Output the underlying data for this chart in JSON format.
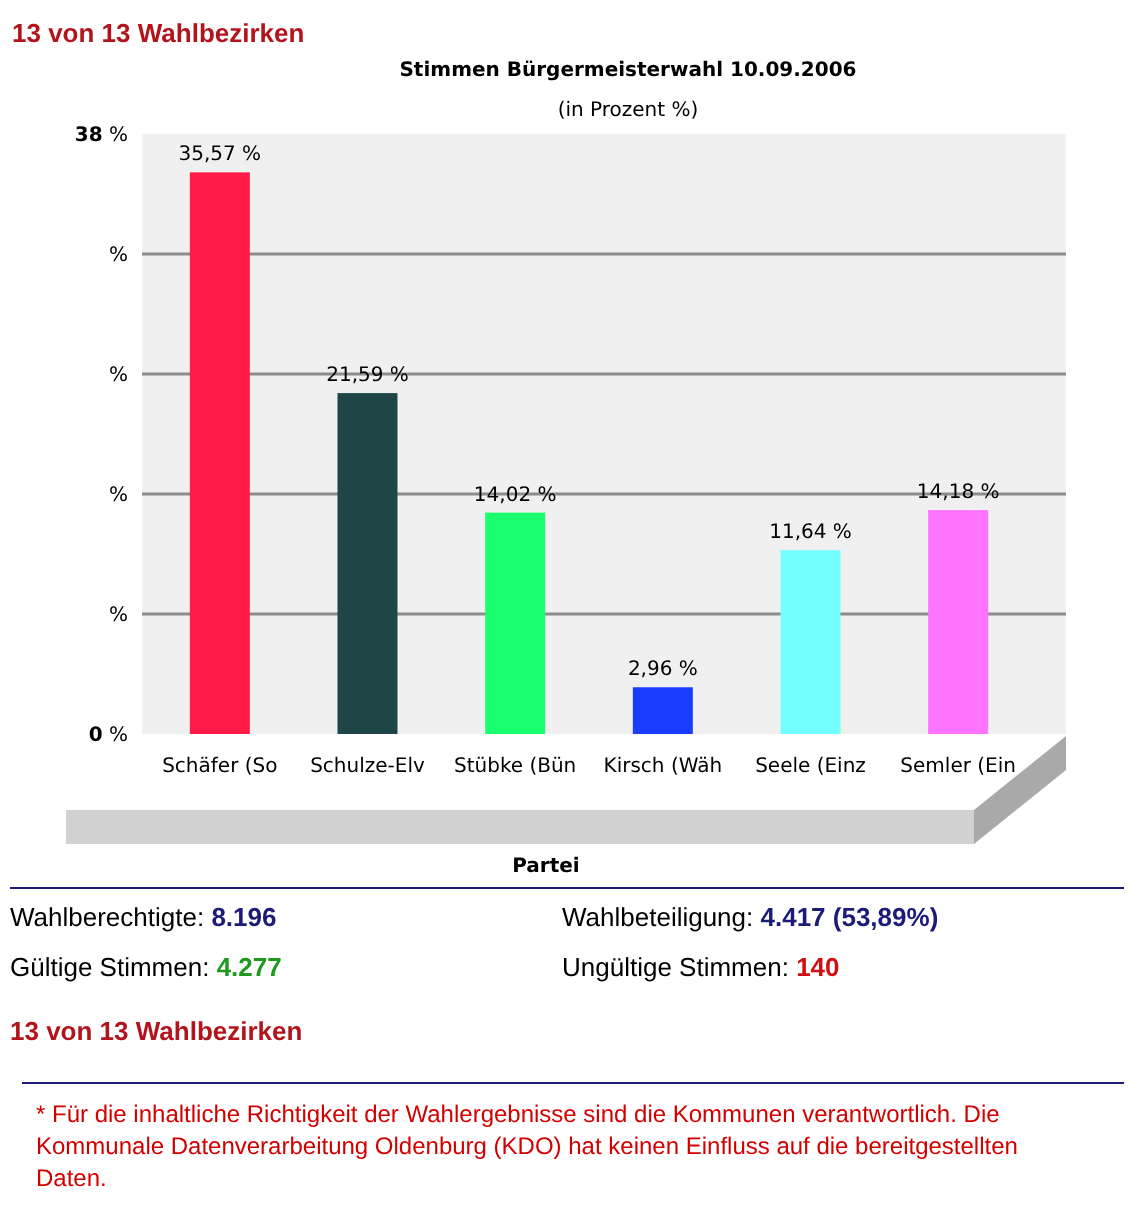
{
  "chart_data": {
    "type": "bar",
    "title": "Stimmen Bürgermeisterwahl 10.09.2006",
    "subtitle": "(in Prozent %)",
    "xlabel": "Partei",
    "categories": [
      "Schäfer (So",
      "Schulze-Elv",
      "Stübke (Bün",
      "Kirsch (Wäh",
      "Seele (Einz",
      "Semler (Ein"
    ],
    "values": [
      35.57,
      21.59,
      14.02,
      2.96,
      11.64,
      14.18
    ],
    "colors": [
      "#ff1a48",
      "#1e4646",
      "#19ff6e",
      "#1a3cff",
      "#73ffff",
      "#ff73ff"
    ],
    "value_labels": [
      "35,57 %",
      "21,59 %",
      "14,02 %",
      "2,96 %",
      "11,64 %",
      "14,18 %"
    ],
    "ylim": [
      0,
      38
    ],
    "yticks": [
      {
        "value": 0,
        "label": "0 %"
      },
      {
        "value": 7.6,
        "label": "%"
      },
      {
        "value": 15.2,
        "label": "%"
      },
      {
        "value": 22.8,
        "label": "%"
      },
      {
        "value": 30.4,
        "label": "%"
      },
      {
        "value": 38,
        "label": "38 %"
      }
    ],
    "grid": "y",
    "annotations": [
      "13 von 13 Wahlbezirken",
      "Wahlberechtigte: 8.196",
      "Wahlbeteiligung: 4.417 (53,89%)",
      "Gültige Stimmen: 4.277",
      "Ungültige Stimmen: 140",
      "13 von 13 Wahlbezirken",
      "* Für die inhaltliche Richtigkeit der Wahlergebnisse sind die Kommunen verantwortlich. Die Kommunale Datenverarbeitung Oldenburg (KDO) hat keinen Einfluss auf die bereitgestellten Daten."
    ]
  }
}
